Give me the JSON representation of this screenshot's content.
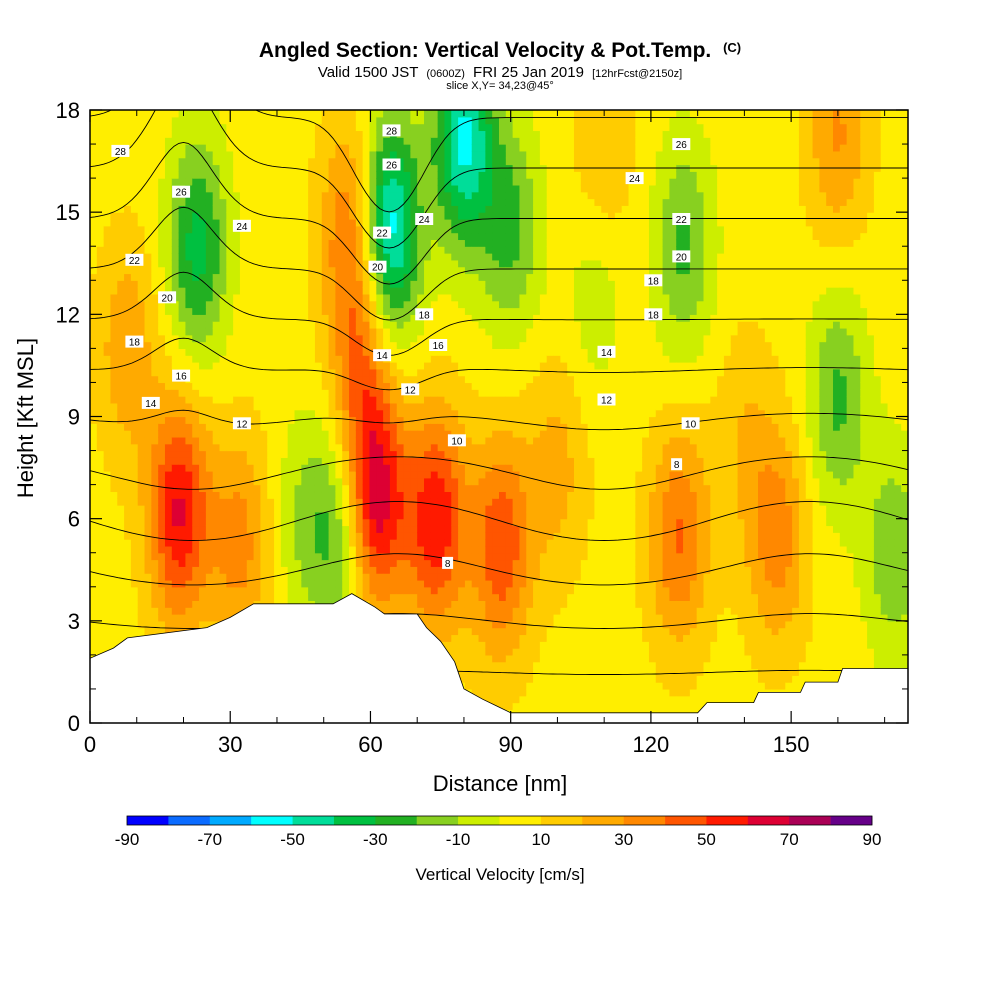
{
  "chart_data": {
    "type": "heatmap",
    "title": "Angled Section: Vertical Velocity & Pot.Temp.",
    "title_unit": "(C)",
    "subtitle_prefix": "Valid 1500 JST",
    "subtitle_small1": "(0600Z)",
    "subtitle_mid": "FRI 25 Jan 2019",
    "subtitle_small2": "[12hrFcst@2150z]",
    "slice_label": "slice X,Y= 34,23@45°",
    "xlabel": "Distance [nm]",
    "ylabel": "Height [Kft MSL]",
    "xlim": [
      0,
      175
    ],
    "ylim": [
      0,
      18
    ],
    "xticks": [
      0,
      30,
      60,
      90,
      120,
      150
    ],
    "xminor": [
      10,
      20,
      40,
      50,
      70,
      80,
      100,
      110,
      130,
      140,
      160,
      170
    ],
    "yticks": [
      0,
      3,
      6,
      9,
      12,
      15,
      18
    ],
    "colorbar": {
      "title": "Vertical Velocity [cm/s]",
      "levels": [
        -90,
        -80,
        -70,
        -60,
        -50,
        -40,
        -30,
        -20,
        -10,
        0,
        10,
        20,
        30,
        40,
        50,
        60,
        70,
        80,
        90
      ],
      "tick_labels": [
        "-90",
        "-70",
        "-50",
        "-30",
        "-10",
        "10",
        "30",
        "50",
        "70",
        "90"
      ],
      "colors": [
        "#0000ff",
        "#0a6bff",
        "#00aaff",
        "#00ffff",
        "#00dd99",
        "#00c040",
        "#22b022",
        "#88d020",
        "#ccee00",
        "#ffee00",
        "#ffcc00",
        "#ffaa00",
        "#ff8800",
        "#ff5500",
        "#ff1a00",
        "#dd0033",
        "#aa0055",
        "#660088"
      ]
    },
    "terrain": [
      [
        0,
        1.9
      ],
      [
        5,
        2.2
      ],
      [
        8,
        2.5
      ],
      [
        25,
        2.8
      ],
      [
        30,
        3.1
      ],
      [
        35,
        3.5
      ],
      [
        52,
        3.5
      ],
      [
        56,
        3.8
      ],
      [
        61,
        3.4
      ],
      [
        63,
        3.2
      ],
      [
        70,
        3.2
      ],
      [
        72,
        2.8
      ],
      [
        75,
        2.4
      ],
      [
        78,
        1.8
      ],
      [
        80,
        1.0
      ],
      [
        84,
        0.7
      ],
      [
        87,
        0.5
      ],
      [
        90,
        0.3
      ],
      [
        104,
        0.3
      ],
      [
        130,
        0.3
      ],
      [
        132,
        0.6
      ],
      [
        142,
        0.6
      ],
      [
        143,
        0.9
      ],
      [
        152,
        0.9
      ],
      [
        153,
        1.2
      ],
      [
        160,
        1.2
      ],
      [
        161,
        1.6
      ],
      [
        175,
        1.6
      ]
    ],
    "updrafts": [
      {
        "x": 19,
        "z": 6.2,
        "v": 55
      },
      {
        "x": 32,
        "z": 5.3,
        "v": 28
      },
      {
        "x": 61,
        "z": 6.5,
        "v": 62
      },
      {
        "x": 74,
        "z": 6.0,
        "v": 52
      },
      {
        "x": 88,
        "z": 5.2,
        "v": 42
      },
      {
        "x": 56,
        "z": 14.5,
        "v": 35
      },
      {
        "x": 58,
        "z": 10.5,
        "v": 30
      },
      {
        "x": 126,
        "z": 5.5,
        "v": 35
      },
      {
        "x": 147,
        "z": 5.5,
        "v": 30
      },
      {
        "x": 8,
        "z": 11.0,
        "v": 22
      },
      {
        "x": 110,
        "z": 17.0,
        "v": 15
      },
      {
        "x": 160,
        "z": 17.3,
        "v": 25
      },
      {
        "x": 100,
        "z": 7.5,
        "v": 18
      },
      {
        "x": 140,
        "z": 8.5,
        "v": 12
      }
    ],
    "downdrafts": [
      {
        "x": 23,
        "z": 14.0,
        "v": -40
      },
      {
        "x": 64,
        "z": 14.5,
        "v": -65
      },
      {
        "x": 80,
        "z": 17.2,
        "v": -58
      },
      {
        "x": 54,
        "z": 5.5,
        "v": -30
      },
      {
        "x": 127,
        "z": 14.0,
        "v": -28
      },
      {
        "x": 160,
        "z": 9.5,
        "v": -28
      },
      {
        "x": 172,
        "z": 5.0,
        "v": -24
      },
      {
        "x": 90,
        "z": 14.5,
        "v": -28
      },
      {
        "x": 46,
        "z": 6.0,
        "v": -16
      },
      {
        "x": 108,
        "z": 12.5,
        "v": -12
      }
    ],
    "theta_levels": [
      2,
      4,
      6,
      8,
      10,
      12,
      14,
      16,
      18,
      20,
      22,
      24,
      26,
      28
    ],
    "contour_labels": [
      {
        "text": "28",
        "x": 6.5,
        "z": 16.8
      },
      {
        "text": "26",
        "x": 19.5,
        "z": 15.6
      },
      {
        "text": "24",
        "x": 32.5,
        "z": 14.6
      },
      {
        "text": "22",
        "x": 9.5,
        "z": 13.6
      },
      {
        "text": "20",
        "x": 16.5,
        "z": 12.5
      },
      {
        "text": "18",
        "x": 9.5,
        "z": 11.2
      },
      {
        "text": "16",
        "x": 19.5,
        "z": 10.2
      },
      {
        "text": "14",
        "x": 13,
        "z": 9.4
      },
      {
        "text": "12",
        "x": 32.5,
        "z": 8.8
      },
      {
        "text": "28",
        "x": 64.5,
        "z": 17.4
      },
      {
        "text": "26",
        "x": 64.5,
        "z": 16.4
      },
      {
        "text": "22",
        "x": 62.5,
        "z": 14.4
      },
      {
        "text": "24",
        "x": 71.5,
        "z": 14.8
      },
      {
        "text": "20",
        "x": 61.5,
        "z": 13.4
      },
      {
        "text": "18",
        "x": 71.5,
        "z": 12.0
      },
      {
        "text": "16",
        "x": 74.5,
        "z": 11.1
      },
      {
        "text": "14",
        "x": 62.5,
        "z": 10.8
      },
      {
        "text": "12",
        "x": 68.5,
        "z": 9.8
      },
      {
        "text": "10",
        "x": 78.5,
        "z": 8.3
      },
      {
        "text": "8",
        "x": 76.5,
        "z": 4.7
      },
      {
        "text": "26",
        "x": 126.5,
        "z": 17.0
      },
      {
        "text": "24",
        "x": 116.5,
        "z": 16.0
      },
      {
        "text": "22",
        "x": 126.5,
        "z": 14.8
      },
      {
        "text": "20",
        "x": 126.5,
        "z": 13.7
      },
      {
        "text": "18",
        "x": 120.5,
        "z": 13.0
      },
      {
        "text": "18",
        "x": 120.5,
        "z": 12.0
      },
      {
        "text": "14",
        "x": 110.5,
        "z": 10.9
      },
      {
        "text": "12",
        "x": 110.5,
        "z": 9.5
      },
      {
        "text": "10",
        "x": 128.5,
        "z": 8.8
      },
      {
        "text": "8",
        "x": 125.5,
        "z": 7.6
      }
    ]
  }
}
